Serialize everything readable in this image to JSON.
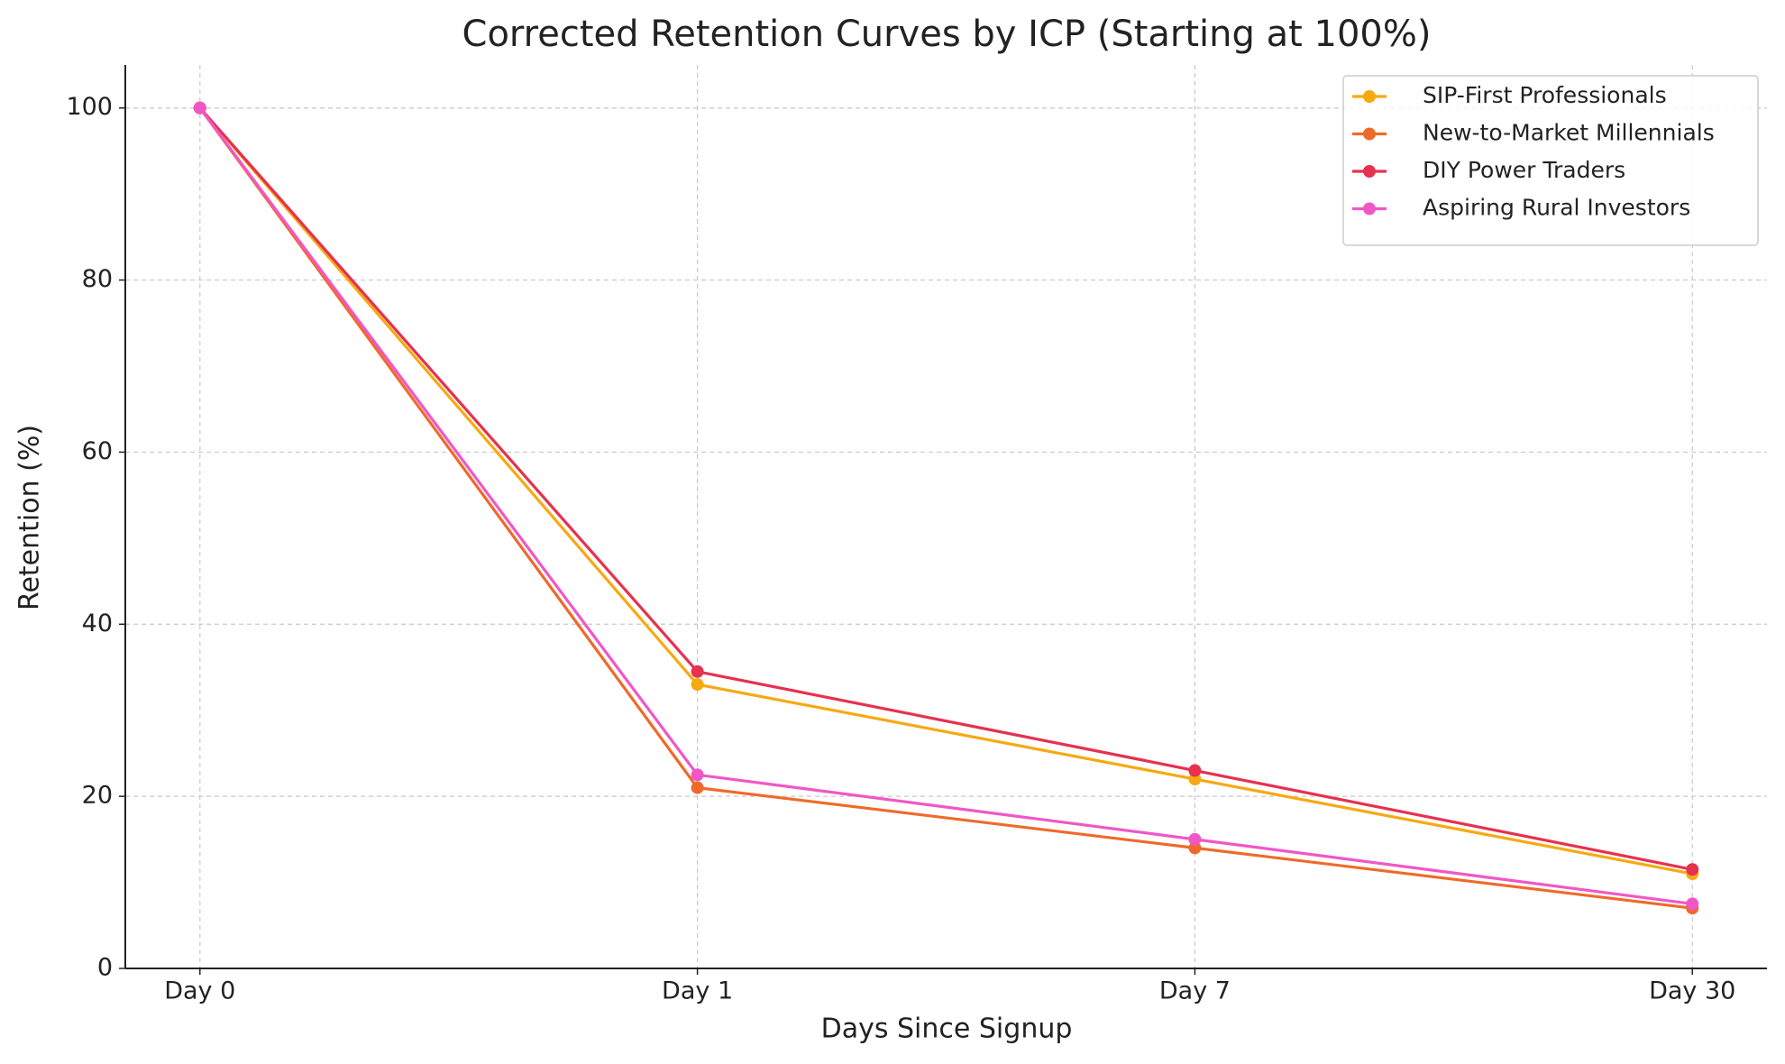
{
  "chart_data": {
    "type": "line",
    "title": "Corrected Retention Curves by ICP (Starting at 100%)",
    "x_label": "Days Since Signup",
    "y_label": "Retention (%)",
    "categories": [
      "Day 0",
      "Day 1",
      "Day 7",
      "Day 30"
    ],
    "series": [
      {
        "name": "SIP-First Professionals",
        "color": "#f7a912",
        "values": [
          100,
          33,
          22,
          11
        ]
      },
      {
        "name": "New-to-Market Millennials",
        "color": "#ef6a2a",
        "values": [
          100,
          21,
          14,
          7
        ]
      },
      {
        "name": "DIY Power Traders",
        "color": "#e6314f",
        "values": [
          100,
          34.5,
          23,
          11.5
        ]
      },
      {
        "name": "Aspiring Rural Investors",
        "color": "#f057c6",
        "values": [
          100,
          22.5,
          15,
          7.5
        ]
      }
    ],
    "ylim": [
      0,
      105
    ],
    "yticks": [
      0,
      20,
      40,
      60,
      80,
      100
    ],
    "grid": true,
    "legend": "upper right"
  }
}
